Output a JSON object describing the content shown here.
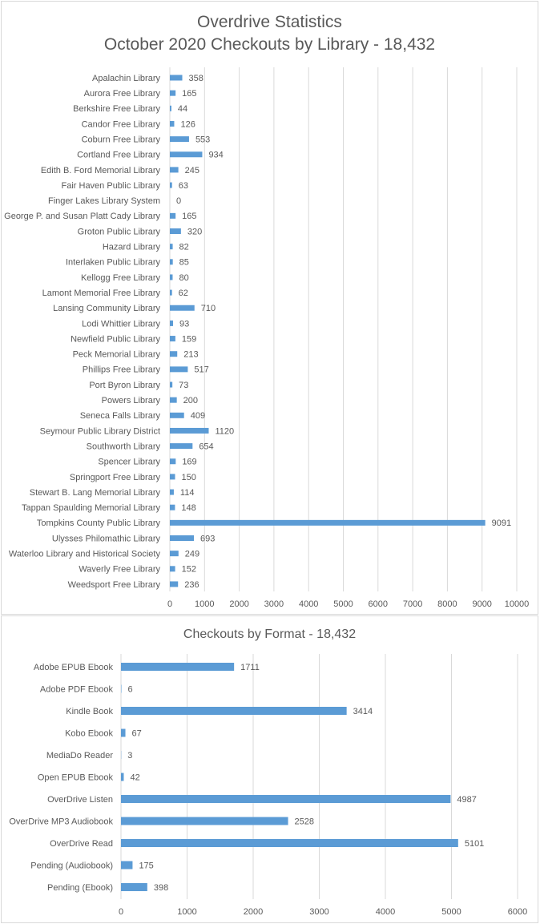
{
  "colors": {
    "bar": "#5b9bd5",
    "grid": "#d9d9d9",
    "text": "#595959",
    "border": "#d9d9d9"
  },
  "chart_data": [
    {
      "type": "bar",
      "orientation": "horizontal",
      "title": "Overdrive Statistics",
      "subtitle": "October 2020 Checkouts by Library - 18,432",
      "categories": [
        "Apalachin Library",
        "Aurora Free Library",
        "Berkshire Free Library",
        "Candor Free Library",
        "Coburn Free Library",
        "Cortland Free Library",
        "Edith B. Ford Memorial Library",
        "Fair Haven Public Library",
        "Finger Lakes Library System",
        "George P. and Susan Platt Cady Library",
        "Groton Public Library",
        "Hazard Library",
        "Interlaken Public Library",
        "Kellogg Free Library",
        "Lamont Memorial Free Library",
        "Lansing Community Library",
        "Lodi Whittier Library",
        "Newfield Public Library",
        "Peck Memorial Library",
        "Phillips Free Library",
        "Port Byron Library",
        "Powers Library",
        "Seneca Falls Library",
        "Seymour Public Library District",
        "Southworth Library",
        "Spencer Library",
        "Springport Free Library",
        "Stewart B. Lang Memorial Library",
        "Tappan Spaulding Memorial Library",
        "Tompkins County Public Library",
        "Ulysses Philomathic Library",
        "Waterloo Library and Historical Society",
        "Waverly Free Library",
        "Weedsport Free Library"
      ],
      "values": [
        358,
        165,
        44,
        126,
        553,
        934,
        245,
        63,
        0,
        165,
        320,
        82,
        85,
        80,
        62,
        710,
        93,
        159,
        213,
        517,
        73,
        200,
        409,
        1120,
        654,
        169,
        150,
        114,
        148,
        9091,
        693,
        249,
        152,
        236
      ],
      "xlim": [
        0,
        10000
      ],
      "xticks": [
        "0",
        "1000",
        "2000",
        "3000",
        "4000",
        "5000",
        "6000",
        "7000",
        "8000",
        "9000",
        "10000"
      ],
      "grid": true,
      "data_labels": true
    },
    {
      "type": "bar",
      "orientation": "horizontal",
      "title": "Checkouts by Format - 18,432",
      "categories": [
        "Adobe EPUB Ebook",
        "Adobe PDF Ebook",
        "Kindle Book",
        "Kobo Ebook",
        "MediaDo Reader",
        "Open EPUB Ebook",
        "OverDrive Listen",
        "OverDrive MP3 Audiobook",
        "OverDrive Read",
        "Pending (Audiobook)",
        "Pending (Ebook)"
      ],
      "values": [
        1711,
        6,
        3414,
        67,
        3,
        42,
        4987,
        2528,
        5101,
        175,
        398
      ],
      "xlim": [
        0,
        6000
      ],
      "xticks": [
        "0",
        "1000",
        "2000",
        "3000",
        "4000",
        "5000",
        "6000"
      ],
      "grid": true,
      "data_labels": true
    }
  ]
}
